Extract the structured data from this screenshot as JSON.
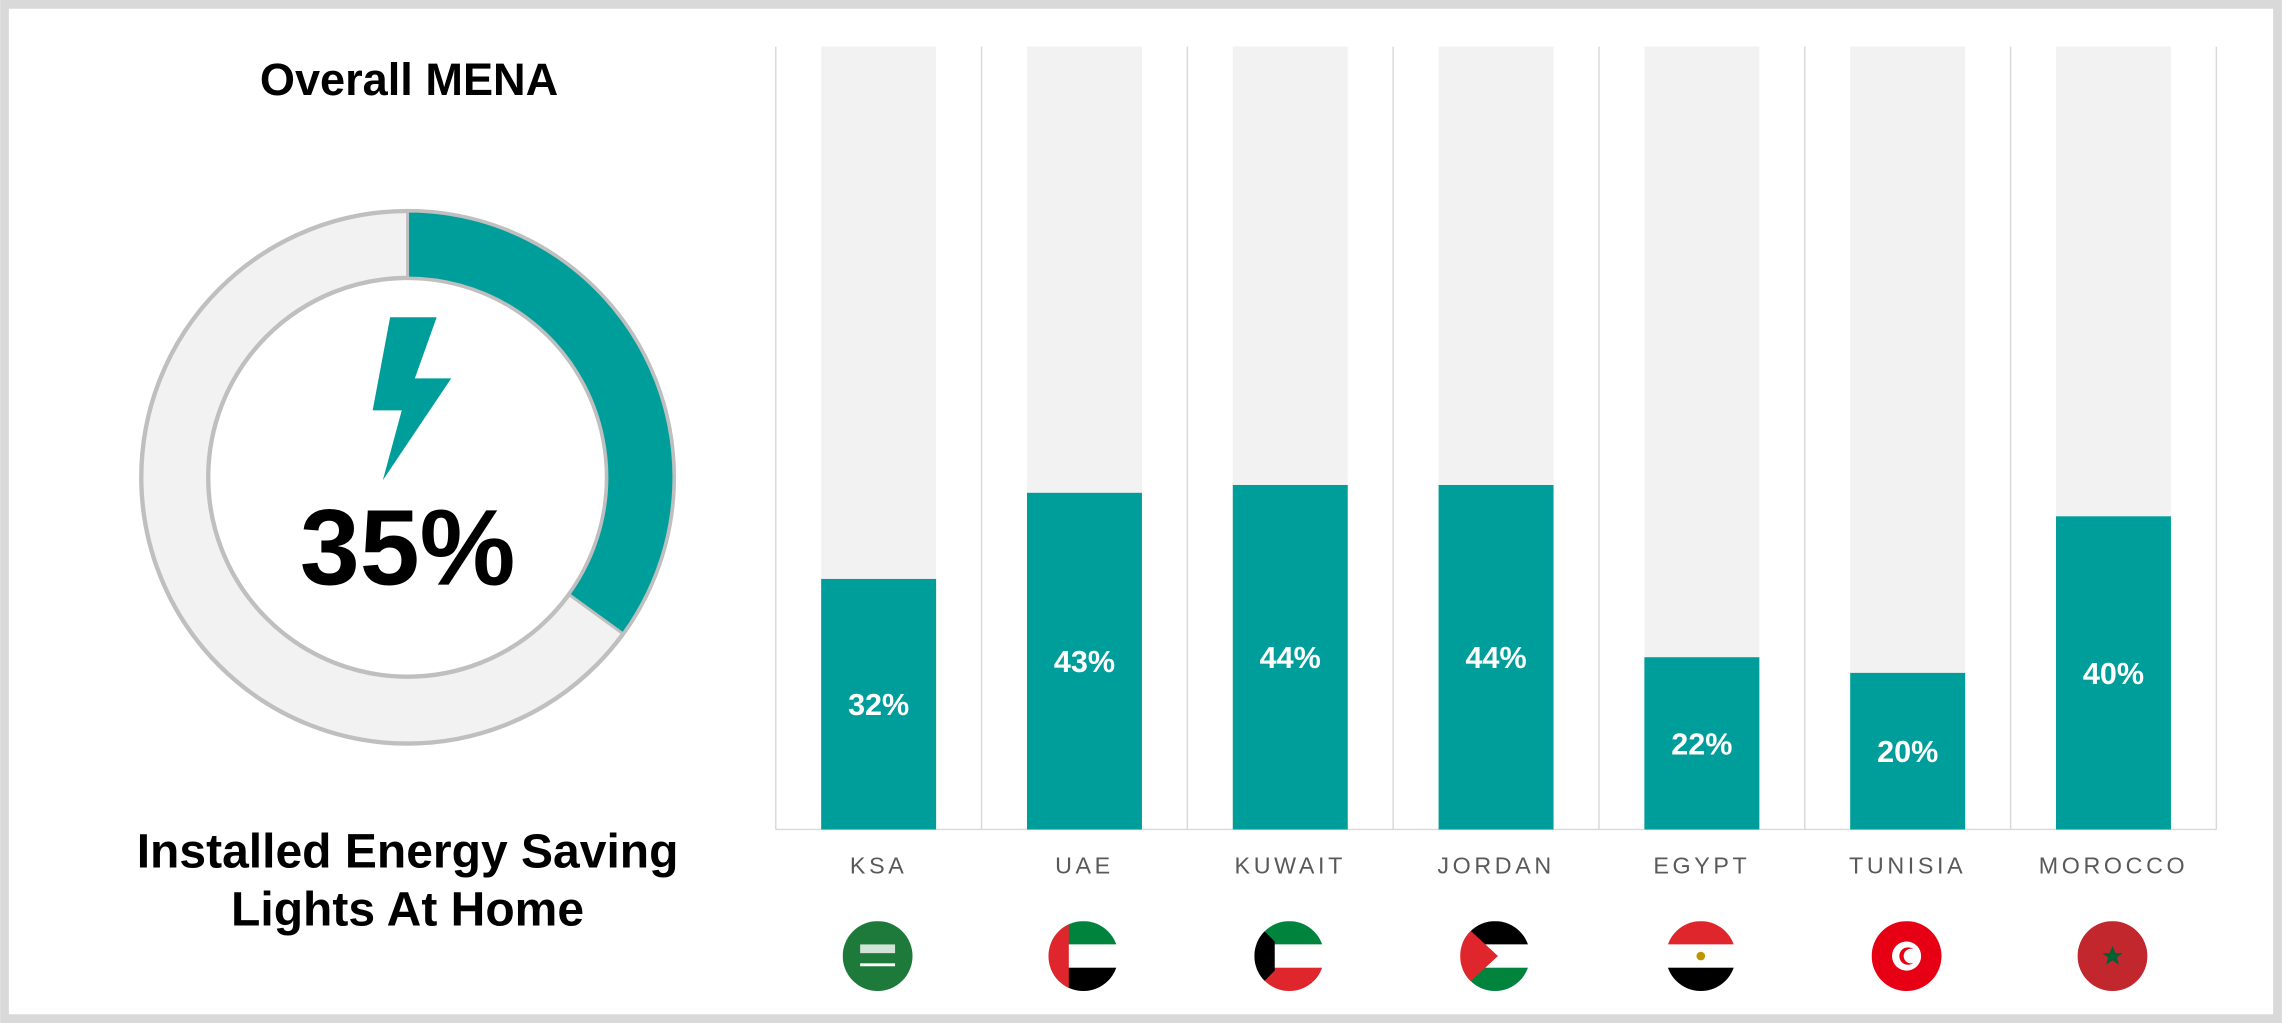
{
  "chart_data": [
    {
      "type": "donut",
      "title": "Overall MENA",
      "subtitle": "Installed Energy Saving Lights At Home",
      "values": [
        35
      ],
      "value_labels": [
        "35%"
      ],
      "color": "#009e9a",
      "track_color": "#f2f2f2"
    },
    {
      "type": "bar",
      "categories": [
        "KSA",
        "UAE",
        "KUWAIT",
        "JORDAN",
        "EGYPT",
        "TUNISIA",
        "MOROCCO"
      ],
      "values": [
        32,
        43,
        44,
        44,
        22,
        20,
        40
      ],
      "value_labels": [
        "32%",
        "43%",
        "44%",
        "44%",
        "22%",
        "20%",
        "40%"
      ],
      "color": "#009e9a",
      "track_color": "#f2f2f2",
      "ylim": [
        0,
        100
      ]
    }
  ]
}
